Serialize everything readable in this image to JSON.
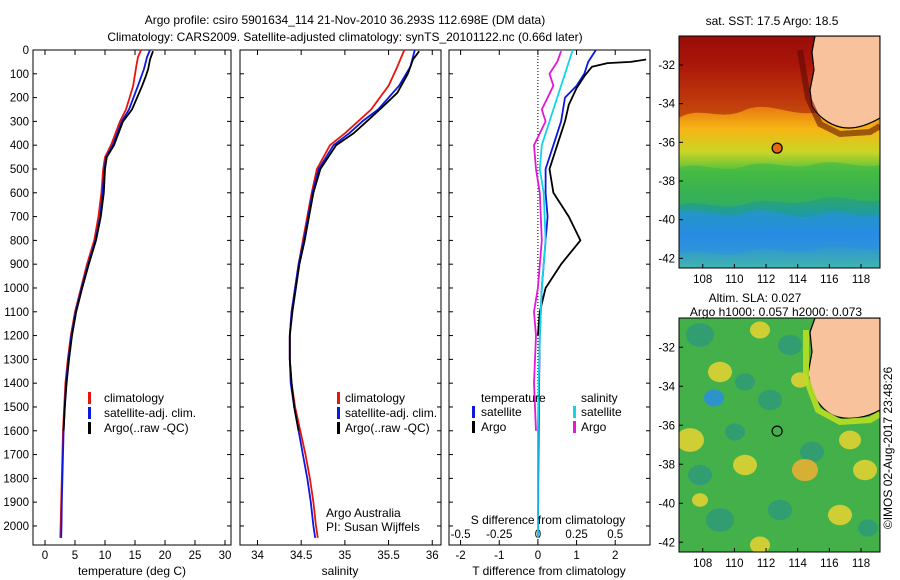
{
  "header": {
    "line1": "Argo profile: csiro 5901634_114 21-Nov-2010 36.293S 112.698E (DM data)",
    "line2": "Climatology: CARS2009. Satellite-adjusted climatology: synTS_20101122.nc (0.66d later)"
  },
  "side_stamp": "©IMOS 02-Aug-2017 23:48:26",
  "colors": {
    "climatology": "#e8150e",
    "satellite": "#0b18e0",
    "argo": "#000000",
    "sat_salinity": "#13d4e6",
    "argo_salinity": "#e01ad6",
    "land": "#f7c29c"
  },
  "chart_data": [
    {
      "type": "line",
      "name": "temperature-panel",
      "xlabel": "temperature (deg C)",
      "xticks": [
        0,
        5,
        10,
        15,
        20,
        25,
        30
      ],
      "xlim": [
        -2,
        31
      ],
      "ylim": [
        2080,
        0
      ],
      "yticks": [
        0,
        100,
        200,
        300,
        400,
        500,
        600,
        700,
        800,
        900,
        1000,
        1100,
        1200,
        1300,
        1400,
        1500,
        1600,
        1700,
        1800,
        1900,
        2000
      ],
      "legend": [
        "climatology",
        "satellite-adj. clim.",
        "Argo(..raw -QC)"
      ],
      "series": [
        {
          "name": "climatology",
          "color": "#e8150e",
          "points": [
            [
              16,
              0
            ],
            [
              15.5,
              30
            ],
            [
              15.2,
              70
            ],
            [
              14.7,
              150
            ],
            [
              13.5,
              250
            ],
            [
              12.5,
              300
            ],
            [
              11,
              400
            ],
            [
              10,
              450
            ],
            [
              9.7,
              500
            ],
            [
              9.4,
              600
            ],
            [
              8.9,
              700
            ],
            [
              8.2,
              800
            ],
            [
              7,
              900
            ],
            [
              6,
              1000
            ],
            [
              5,
              1100
            ],
            [
              4.3,
              1200
            ],
            [
              3.8,
              1300
            ],
            [
              3.4,
              1400
            ],
            [
              3.2,
              1500
            ],
            [
              3,
              1600
            ],
            [
              2.9,
              1700
            ],
            [
              2.8,
              1800
            ],
            [
              2.7,
              1900
            ],
            [
              2.6,
              2000
            ],
            [
              2.55,
              2050
            ]
          ]
        },
        {
          "name": "satellite-adj. clim.",
          "color": "#0b18e0",
          "points": [
            [
              17.5,
              0
            ],
            [
              17,
              30
            ],
            [
              16.5,
              80
            ],
            [
              15.5,
              150
            ],
            [
              14,
              250
            ],
            [
              12.8,
              300
            ],
            [
              11.3,
              400
            ],
            [
              10.2,
              450
            ],
            [
              9.9,
              500
            ],
            [
              9.6,
              600
            ],
            [
              9.2,
              700
            ],
            [
              8.4,
              800
            ],
            [
              7.2,
              900
            ],
            [
              6.1,
              1000
            ],
            [
              5.1,
              1100
            ],
            [
              4.4,
              1200
            ],
            [
              3.9,
              1300
            ],
            [
              3.5,
              1400
            ],
            [
              3.3,
              1500
            ],
            [
              3.1,
              1600
            ],
            [
              3,
              1700
            ],
            [
              2.9,
              1800
            ],
            [
              2.8,
              1900
            ],
            [
              2.75,
              2000
            ],
            [
              2.7,
              2050
            ]
          ]
        },
        {
          "name": "Argo(..raw -QC)",
          "color": "#000000",
          "points": [
            [
              18,
              5
            ],
            [
              17.5,
              40
            ],
            [
              17.2,
              80
            ],
            [
              16.8,
              110
            ],
            [
              16.2,
              150
            ],
            [
              14.5,
              250
            ],
            [
              13,
              300
            ],
            [
              11.5,
              400
            ],
            [
              10.3,
              450
            ],
            [
              10,
              500
            ],
            [
              9.8,
              600
            ],
            [
              9.3,
              700
            ],
            [
              8.5,
              800
            ],
            [
              7.3,
              900
            ],
            [
              6.2,
              1000
            ],
            [
              5.2,
              1100
            ],
            [
              4.5,
              1200
            ],
            [
              4,
              1300
            ],
            [
              3.6,
              1400
            ],
            [
              3.3,
              1500
            ],
            [
              3.1,
              1600
            ]
          ]
        }
      ]
    },
    {
      "type": "line",
      "name": "salinity-panel",
      "xlabel": "salinity",
      "xticks": [
        34,
        34.5,
        35,
        35.5,
        36
      ],
      "xlim": [
        33.8,
        36.1
      ],
      "ylim": [
        2080,
        0
      ],
      "legend": [
        "climatology",
        "satellite-adj. clim.",
        "Argo(..raw -QC)"
      ],
      "annotation": [
        "Argo Australia",
        "PI: Susan Wijffels"
      ],
      "series": [
        {
          "name": "climatology",
          "color": "#e8150e",
          "points": [
            [
              35.68,
              0
            ],
            [
              35.6,
              70
            ],
            [
              35.5,
              150
            ],
            [
              35.3,
              250
            ],
            [
              35.15,
              300
            ],
            [
              35,
              350
            ],
            [
              34.83,
              400
            ],
            [
              34.68,
              500
            ],
            [
              34.62,
              600
            ],
            [
              34.57,
              700
            ],
            [
              34.52,
              800
            ],
            [
              34.47,
              900
            ],
            [
              34.43,
              1000
            ],
            [
              34.39,
              1100
            ],
            [
              34.37,
              1200
            ],
            [
              34.37,
              1300
            ],
            [
              34.39,
              1400
            ],
            [
              34.43,
              1500
            ],
            [
              34.49,
              1600
            ],
            [
              34.55,
              1700
            ],
            [
              34.6,
              1800
            ],
            [
              34.64,
              1900
            ],
            [
              34.67,
              2000
            ],
            [
              34.69,
              2050
            ]
          ]
        },
        {
          "name": "satellite-adj. clim.",
          "color": "#0b18e0",
          "points": [
            [
              35.8,
              0
            ],
            [
              35.75,
              70
            ],
            [
              35.62,
              150
            ],
            [
              35.38,
              250
            ],
            [
              35.2,
              300
            ],
            [
              35.05,
              350
            ],
            [
              34.87,
              400
            ],
            [
              34.7,
              500
            ],
            [
              34.63,
              600
            ],
            [
              34.58,
              700
            ],
            [
              34.53,
              800
            ],
            [
              34.47,
              900
            ],
            [
              34.43,
              1000
            ],
            [
              34.39,
              1100
            ],
            [
              34.37,
              1200
            ],
            [
              34.37,
              1300
            ],
            [
              34.38,
              1400
            ],
            [
              34.42,
              1500
            ],
            [
              34.47,
              1600
            ],
            [
              34.52,
              1700
            ],
            [
              34.57,
              1800
            ],
            [
              34.61,
              1900
            ],
            [
              34.64,
              2000
            ],
            [
              34.66,
              2050
            ]
          ]
        },
        {
          "name": "Argo(..raw -QC)",
          "color": "#000000",
          "points": [
            [
              35.85,
              5
            ],
            [
              35.78,
              40
            ],
            [
              35.72,
              100
            ],
            [
              35.6,
              180
            ],
            [
              35.4,
              250
            ],
            [
              35.25,
              300
            ],
            [
              35.1,
              350
            ],
            [
              34.9,
              400
            ],
            [
              34.72,
              500
            ],
            [
              34.64,
              600
            ],
            [
              34.59,
              700
            ],
            [
              34.54,
              800
            ],
            [
              34.48,
              900
            ],
            [
              34.44,
              1000
            ],
            [
              34.4,
              1100
            ],
            [
              34.37,
              1200
            ],
            [
              34.37,
              1300
            ],
            [
              34.39,
              1400
            ],
            [
              34.42,
              1500
            ],
            [
              34.47,
              1600
            ]
          ]
        }
      ]
    },
    {
      "type": "line",
      "name": "difference-panel",
      "xlabel": "T difference from climatology",
      "xticks": [
        -2,
        -1,
        0,
        1,
        2
      ],
      "xlim": [
        -2.3,
        2.9
      ],
      "top_label": "S difference from climatology",
      "top_ticks": [
        [
          "-0.5",
          -2
        ],
        [
          "-0.25",
          -1
        ],
        [
          "0",
          0
        ],
        [
          "0.25",
          1
        ],
        [
          "0.5",
          2
        ]
      ],
      "ylim": [
        2080,
        0
      ],
      "legend_titles": [
        "temperature",
        "salinity"
      ],
      "legend": [
        [
          "satellite",
          "Argo"
        ],
        [
          "satellite",
          "Argo"
        ]
      ],
      "series": [
        {
          "name": "T satellite",
          "color": "#0b18e0",
          "points": [
            [
              1.5,
              0
            ],
            [
              1.3,
              50
            ],
            [
              1.2,
              100
            ],
            [
              1,
              150
            ],
            [
              0.7,
              200
            ],
            [
              0.6,
              300
            ],
            [
              0.4,
              400
            ],
            [
              0.2,
              500
            ],
            [
              0.2,
              600
            ],
            [
              0.25,
              700
            ],
            [
              0.2,
              800
            ],
            [
              0.15,
              900
            ],
            [
              0.1,
              1000
            ],
            [
              0.05,
              1200
            ],
            [
              0.03,
              1400
            ],
            [
              0.02,
              1600
            ],
            [
              0.01,
              1800
            ],
            [
              0,
              2050
            ]
          ]
        },
        {
          "name": "T Argo",
          "color": "#000000",
          "points": [
            [
              2.8,
              40
            ],
            [
              2.4,
              50
            ],
            [
              1.8,
              55
            ],
            [
              1.4,
              70
            ],
            [
              1.2,
              110
            ],
            [
              1,
              160
            ],
            [
              0.8,
              230
            ],
            [
              0.7,
              300
            ],
            [
              0.5,
              400
            ],
            [
              0.3,
              500
            ],
            [
              0.4,
              600
            ],
            [
              0.8,
              700
            ],
            [
              1.1,
              800
            ],
            [
              0.6,
              900
            ],
            [
              0.2,
              1000
            ],
            [
              0.05,
              1100
            ],
            [
              0,
              1200
            ]
          ]
        },
        {
          "name": "S satellite",
          "color": "#13d4e6",
          "points": [
            [
              0.9,
              0
            ],
            [
              0.8,
              50
            ],
            [
              0.7,
              100
            ],
            [
              0.5,
              200
            ],
            [
              0.3,
              300
            ],
            [
              0.1,
              400
            ],
            [
              0.05,
              500
            ],
            [
              0.15,
              600
            ],
            [
              0.2,
              800
            ],
            [
              0.1,
              1000
            ],
            [
              0.05,
              1200
            ],
            [
              0.02,
              1400
            ],
            [
              0,
              1600
            ],
            [
              0,
              2050
            ]
          ]
        },
        {
          "name": "S Argo",
          "color": "#e01ad6",
          "points": [
            [
              0.6,
              5
            ],
            [
              0.5,
              50
            ],
            [
              0.3,
              100
            ],
            [
              0.4,
              150
            ],
            [
              0.1,
              250
            ],
            [
              0.2,
              300
            ],
            [
              -0.1,
              400
            ],
            [
              -0.05,
              500
            ],
            [
              0.05,
              600
            ],
            [
              0.1,
              800
            ],
            [
              0,
              1000
            ],
            [
              -0.1,
              1100
            ],
            [
              -0.05,
              1200
            ],
            [
              -0.1,
              1400
            ],
            [
              -0.05,
              1600
            ]
          ]
        }
      ]
    },
    {
      "type": "heatmap",
      "name": "sst-map",
      "title": "sat. SST: 17.5 Argo: 18.5",
      "xticks": [
        108,
        110,
        112,
        114,
        116,
        118
      ],
      "yticks": [
        -32,
        -34,
        -36,
        -38,
        -40,
        -42
      ],
      "xlim": [
        106.5,
        119.2
      ],
      "ylim": [
        -42.5,
        -30.5
      ],
      "argo_position": [
        112.7,
        -36.3
      ]
    },
    {
      "type": "heatmap",
      "name": "sla-map",
      "title_line1": "Altim. SLA: 0.027",
      "title_line2": "Argo h1000: 0.057 h2000: 0.073",
      "xticks": [
        108,
        110,
        112,
        114,
        116,
        118
      ],
      "yticks": [
        -32,
        -34,
        -36,
        -38,
        -40,
        -42
      ],
      "xlim": [
        106.5,
        119.2
      ],
      "ylim": [
        -42.5,
        -30.5
      ],
      "argo_position": [
        112.7,
        -36.3
      ]
    }
  ]
}
